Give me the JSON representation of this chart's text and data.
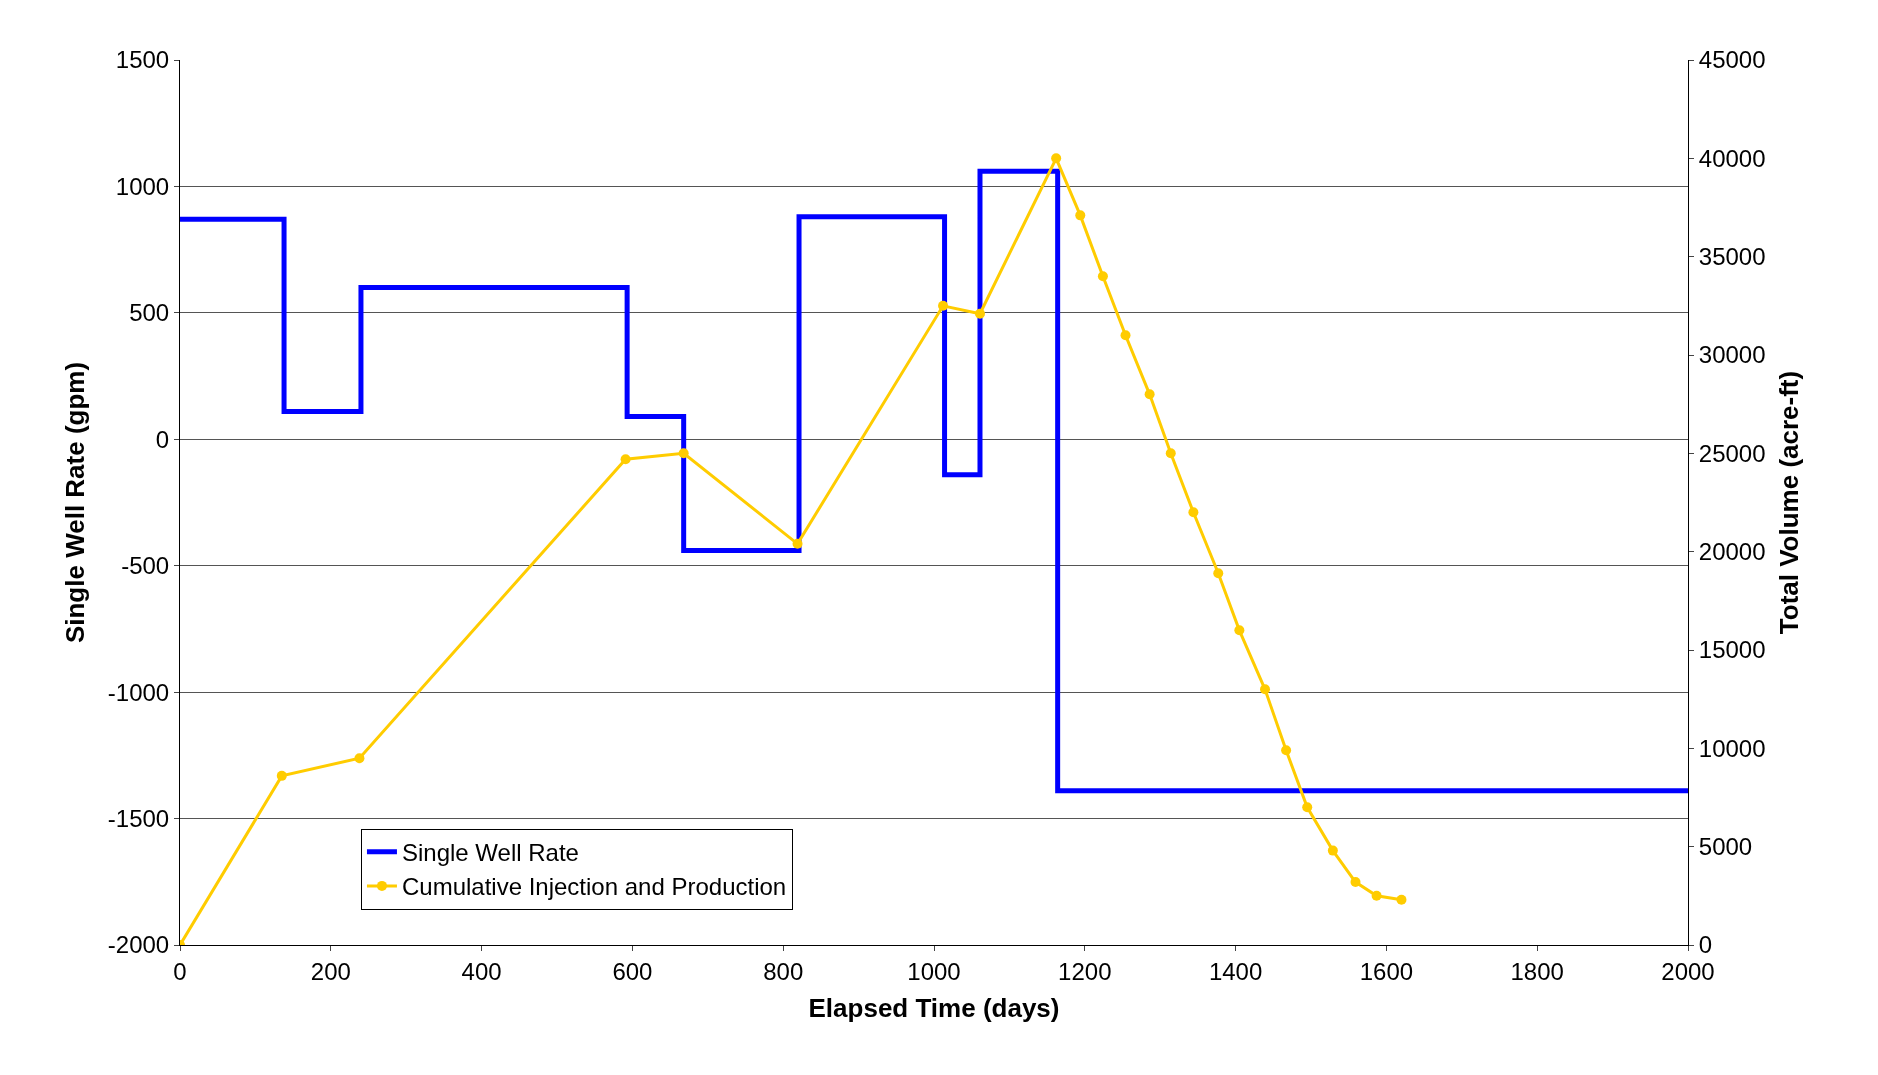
{
  "chart_data": {
    "type": "line",
    "xlabel": "Elapsed Time (days)",
    "ylabel": "Single Well Rate (gpm)",
    "y2label": "Total Volume (acre-ft)",
    "series": [
      {
        "name": "Single Well Rate",
        "type": "step",
        "color": "#0000ff",
        "marker": "none",
        "x": [
          0,
          138,
          240,
          593,
          668,
          821,
          1014,
          1061,
          1164,
          2000
        ],
        "values": [
          870,
          110,
          600,
          90,
          -440,
          880,
          -140,
          1060,
          -1390,
          -1390
        ]
      },
      {
        "name": "Cumulative Injection and Production",
        "axis": "y2",
        "color": "#ffcc00",
        "marker": "circle",
        "x": [
          0,
          135,
          238,
          591,
          668,
          819,
          1012,
          1061,
          1162,
          1194,
          1224,
          1254,
          1286,
          1314,
          1344,
          1377,
          1405,
          1439,
          1467,
          1495,
          1529,
          1559,
          1587,
          1620
        ],
        "values": [
          0,
          8600,
          9500,
          24700,
          25000,
          20400,
          32500,
          32100,
          40000,
          37100,
          34000,
          31000,
          28000,
          25000,
          22000,
          18900,
          16000,
          13000,
          9900,
          7000,
          4800,
          3200,
          2500,
          2300
        ]
      }
    ],
    "xlim": [
      0,
      2000
    ],
    "xticks": [
      0,
      200,
      400,
      600,
      800,
      1000,
      1200,
      1400,
      1600,
      1800,
      2000
    ],
    "ylim": [
      -2000,
      1500
    ],
    "yticks": [
      -2000,
      -1500,
      -1000,
      -500,
      0,
      500,
      1000,
      1500
    ],
    "y2lim": [
      0,
      45000
    ],
    "y2ticks": [
      0,
      5000,
      10000,
      15000,
      20000,
      25000,
      30000,
      35000,
      40000,
      45000
    ],
    "grid": "y",
    "legend": "bottom left"
  }
}
